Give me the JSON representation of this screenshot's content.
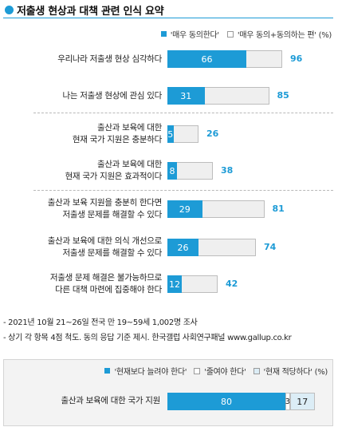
{
  "title": "저출생 현상과 대책 관련 인식 요약",
  "legend_top": {
    "item1": "'매우 동의한다'",
    "item2": "'매우 동의+동의하는 편' (%)"
  },
  "colors": {
    "accent": "#1d9bd6",
    "light_bg": "#efefef",
    "pale_blue": "#dcedf6"
  },
  "chart_data": [
    {
      "type": "bar",
      "orientation": "horizontal",
      "xlim": [
        0,
        100
      ],
      "unit": "%",
      "categories": [
        "우리나라 저출생 현상 심각하다",
        "나는 저출생 현상에 관심 있다",
        "출산과 보육에 대한\n현재 국가 지원은 충분하다",
        "출산과 보육에 대한\n현재 국가 지원은 효과적이다",
        "출산과 보육 지원을 충분히 한다면\n저출생 문제를 해결할 수 있다",
        "출산과 보육에 대한 의식 개선으로\n저출생 문제를 해결할 수 있다",
        "저출생 문제 해결은 불가능하므로\n다른 대책 마련에 집중해야 한다"
      ],
      "series": [
        {
          "name": "'매우 동의한다'",
          "values": [
            66,
            31,
            5,
            8,
            29,
            26,
            12
          ]
        },
        {
          "name": "'매우 동의+동의하는 편'",
          "values": [
            96,
            85,
            26,
            38,
            81,
            74,
            42
          ]
        }
      ]
    },
    {
      "type": "bar",
      "orientation": "horizontal",
      "stacked": true,
      "unit": "%",
      "categories": [
        "출산과 보육에 대한 국가 지원"
      ],
      "series": [
        {
          "name": "'현재보다 늘려야 한다'",
          "values": [
            80
          ]
        },
        {
          "name": "'줄여야 한다'",
          "values": [
            3
          ]
        },
        {
          "name": "'현재 적당하다'",
          "values": [
            17
          ]
        }
      ]
    }
  ],
  "notes": [
    "- 2021년 10월 21~26일 전국 만 19~59세 1,002명 조사",
    "- 상기 각 항목 4점 척도. 동의 응답 기준 제시. 한국갤럽 사회연구패널 www.gallup.co.kr"
  ],
  "legend_bottom": {
    "item1": "'현재보다 늘려야 한다'",
    "item2": "'줄여야 한다'",
    "item3": "'현재 적당하다' (%)"
  }
}
